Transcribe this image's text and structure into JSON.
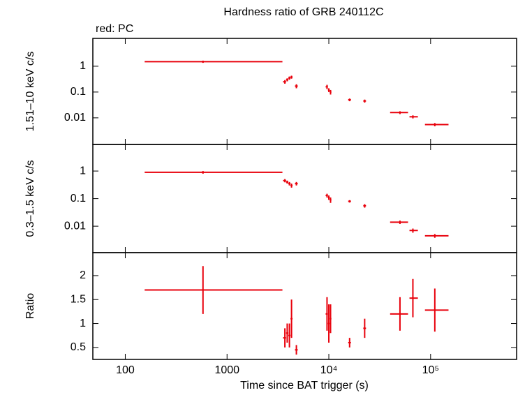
{
  "chart_data": {
    "type": "errorbar",
    "title": "Hardness ratio of GRB 240112C",
    "subtitle": "red: PC",
    "xlabel": "Time since BAT trigger (s)",
    "color": "#e8000b",
    "xscale": "log",
    "xlim": [
      48,
      700000
    ],
    "xticks": [
      100,
      1000,
      {
        "value": 10000,
        "label": "10⁴"
      },
      {
        "value": 100000,
        "label": "10⁵"
      }
    ],
    "x": [
      580,
      3700,
      3900,
      4100,
      4300,
      4800,
      9600,
      10000,
      10400,
      16000,
      22500,
      50000,
      67000,
      110000
    ],
    "x_start": [
      155,
      3550,
      3800,
      4000,
      4200,
      4650,
      9300,
      9800,
      10200,
      15500,
      21800,
      40000,
      62000,
      88000
    ],
    "x_end": [
      3500,
      3800,
      4000,
      4200,
      4400,
      4950,
      9800,
      10200,
      10600,
      16500,
      23200,
      60000,
      75000,
      150000
    ],
    "panels": [
      {
        "ylabel": "1.51–10 keV c/s",
        "yscale": "log",
        "ylim": [
          0.00093,
          12
        ],
        "yticks": [
          1,
          0.1,
          0.01
        ],
        "values": [
          1.5,
          0.25,
          0.3,
          0.35,
          0.38,
          0.17,
          0.16,
          0.12,
          0.1,
          0.05,
          0.045,
          0.016,
          0.011,
          0.0055
        ],
        "errors": [
          0.15,
          0.04,
          0.04,
          0.05,
          0.05,
          0.03,
          0.03,
          0.02,
          0.02,
          0.006,
          0.006,
          0.002,
          0.0015,
          0.0008
        ]
      },
      {
        "ylabel": "0.3–1.5 keV c/s",
        "yscale": "log",
        "ylim": [
          0.0011,
          9.2
        ],
        "yticks": [
          1,
          0.1,
          0.01
        ],
        "values": [
          0.9,
          0.45,
          0.4,
          0.35,
          0.3,
          0.35,
          0.13,
          0.11,
          0.09,
          0.08,
          0.055,
          0.014,
          0.007,
          0.0045
        ],
        "errors": [
          0.1,
          0.06,
          0.05,
          0.05,
          0.05,
          0.05,
          0.02,
          0.02,
          0.02,
          0.008,
          0.008,
          0.002,
          0.0012,
          0.0007
        ]
      },
      {
        "ylabel": "Ratio",
        "yscale": "linear",
        "ylim": [
          0.25,
          2.48
        ],
        "yticks": [
          0.5,
          1,
          1.5,
          2
        ],
        "values": [
          1.7,
          0.7,
          0.8,
          0.75,
          1.1,
          0.45,
          1.2,
          1.0,
          1.1,
          0.6,
          0.9,
          1.2,
          1.53,
          1.28
        ],
        "errors": [
          0.5,
          0.2,
          0.2,
          0.25,
          0.4,
          0.1,
          0.35,
          0.4,
          0.3,
          0.1,
          0.2,
          0.35,
          0.4,
          0.45
        ]
      }
    ]
  }
}
